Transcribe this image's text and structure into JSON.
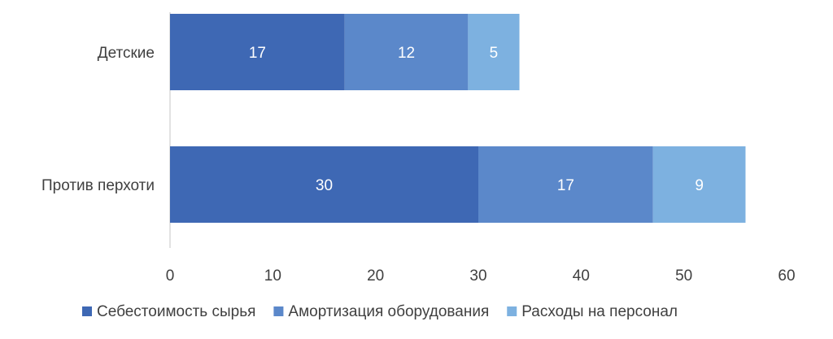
{
  "chart_data": {
    "type": "bar",
    "orientation": "horizontal",
    "stacked": true,
    "categories": [
      "Детские",
      "Против перхоти"
    ],
    "series": [
      {
        "name": "Себестоимость сырья",
        "values": [
          17,
          30
        ],
        "color": "#3e68b4"
      },
      {
        "name": "Амортизация оборудования",
        "values": [
          12,
          17
        ],
        "color": "#5b88ca"
      },
      {
        "name": "Расходы на персонал",
        "values": [
          5,
          9
        ],
        "color": "#7db1e0"
      }
    ],
    "xlim": [
      0,
      60
    ],
    "xticks": [
      "0",
      "10",
      "20",
      "30",
      "40",
      "50",
      "60"
    ],
    "grid": false,
    "data_labels": true,
    "legend_position": "bottom"
  }
}
